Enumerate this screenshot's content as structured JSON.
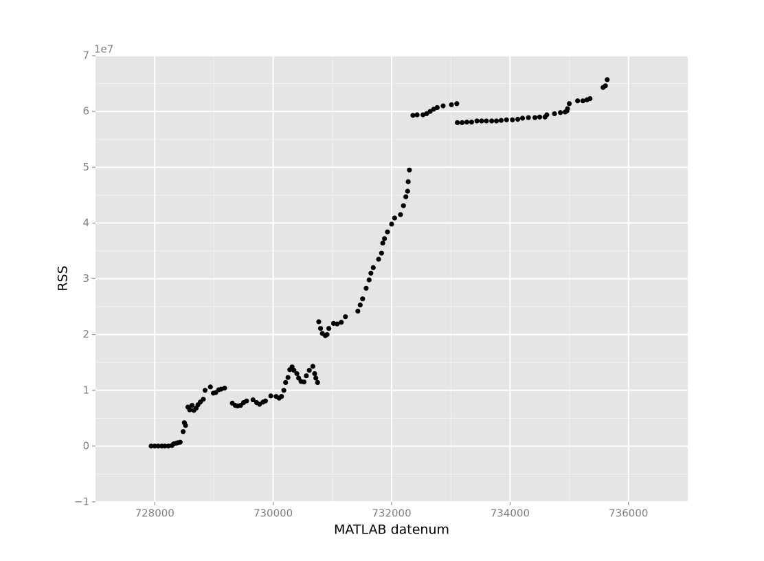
{
  "chart_data": {
    "type": "scatter",
    "xlabel": "MATLAB datenum",
    "ylabel": "RSS",
    "y_offset_label": "1e7",
    "x": [
      727940,
      728000,
      728060,
      728120,
      728170,
      728230,
      728290,
      728320,
      728360,
      728390,
      728430,
      728480,
      728500,
      728520,
      728560,
      728590,
      728630,
      728660,
      728700,
      728730,
      728770,
      728820,
      728850,
      728940,
      728990,
      729030,
      729080,
      729120,
      729180,
      729310,
      729360,
      729400,
      729450,
      729500,
      729550,
      729660,
      729720,
      729770,
      729830,
      729870,
      729960,
      730050,
      730100,
      730140,
      730180,
      730210,
      730250,
      730280,
      730320,
      730350,
      730400,
      730430,
      730470,
      730520,
      730560,
      730610,
      730670,
      730700,
      730720,
      730750,
      730770,
      730800,
      730830,
      730880,
      730910,
      730940,
      731020,
      731080,
      731150,
      731220,
      731430,
      731470,
      731510,
      731570,
      731620,
      731650,
      731690,
      731780,
      731830,
      731850,
      731880,
      731930,
      732000,
      732050,
      732150,
      732200,
      732240,
      732270,
      732280,
      732300,
      732360,
      732430,
      732530,
      732590,
      732650,
      732710,
      732770,
      732870,
      733010,
      733100,
      733110,
      733190,
      733270,
      733350,
      733440,
      733520,
      733600,
      733690,
      733770,
      733850,
      733940,
      734040,
      734130,
      734210,
      734310,
      734420,
      734500,
      734590,
      734620,
      734750,
      734850,
      734930,
      734960,
      734970,
      735000,
      735140,
      735230,
      735300,
      735350,
      735570,
      735610,
      735640
    ],
    "values": [
      0,
      0,
      0,
      0,
      0,
      0,
      100000,
      400000,
      500000,
      600000,
      700000,
      2600000,
      4200000,
      3700000,
      7000000,
      6500000,
      7300000,
      6400000,
      6800000,
      7400000,
      7900000,
      8400000,
      10000000,
      10600000,
      9500000,
      9600000,
      10100000,
      10200000,
      10400000,
      7700000,
      7300000,
      7200000,
      7300000,
      7800000,
      8100000,
      8300000,
      7800000,
      7500000,
      7900000,
      8100000,
      9000000,
      8900000,
      8600000,
      8900000,
      10000000,
      11400000,
      12300000,
      13700000,
      14200000,
      13600000,
      13000000,
      12200000,
      11600000,
      11500000,
      12600000,
      13600000,
      14300000,
      13000000,
      12200000,
      11400000,
      22300000,
      21100000,
      20200000,
      19800000,
      20000000,
      21100000,
      22000000,
      21900000,
      22200000,
      23200000,
      24200000,
      25300000,
      26400000,
      28300000,
      29800000,
      31000000,
      32000000,
      33500000,
      34600000,
      36400000,
      37200000,
      38400000,
      39800000,
      40900000,
      41500000,
      43100000,
      44700000,
      45700000,
      47400000,
      49500000,
      59300000,
      59400000,
      59400000,
      59600000,
      60000000,
      60400000,
      60700000,
      61000000,
      61200000,
      61400000,
      58000000,
      58000000,
      58100000,
      58100000,
      58300000,
      58300000,
      58300000,
      58300000,
      58300000,
      58400000,
      58500000,
      58500000,
      58600000,
      58800000,
      58900000,
      58900000,
      59000000,
      59000000,
      59400000,
      59600000,
      59800000,
      59900000,
      60100000,
      60500000,
      61400000,
      61900000,
      61900000,
      62100000,
      62300000,
      64300000,
      64600000,
      65700000
    ],
    "color": "#000000",
    "xlim": [
      727000,
      737000
    ],
    "xticks": [
      728000,
      730000,
      732000,
      734000,
      736000
    ],
    "minor_xticks": [
      729000,
      731000,
      733000,
      735000
    ],
    "ylim": [
      -10000000,
      70000000
    ],
    "yticks": [
      {
        "value": -10000000,
        "label": "−1"
      },
      {
        "value": 0,
        "label": "0"
      },
      {
        "value": 10000000,
        "label": "1"
      },
      {
        "value": 20000000,
        "label": "2"
      },
      {
        "value": 30000000,
        "label": "3"
      },
      {
        "value": 40000000,
        "label": "4"
      },
      {
        "value": 50000000,
        "label": "5"
      },
      {
        "value": 60000000,
        "label": "6"
      },
      {
        "value": 70000000,
        "label": "7"
      }
    ],
    "minor_yticks": [
      -5000000,
      5000000,
      15000000,
      25000000,
      35000000,
      45000000,
      55000000,
      65000000
    ],
    "grid": true
  }
}
